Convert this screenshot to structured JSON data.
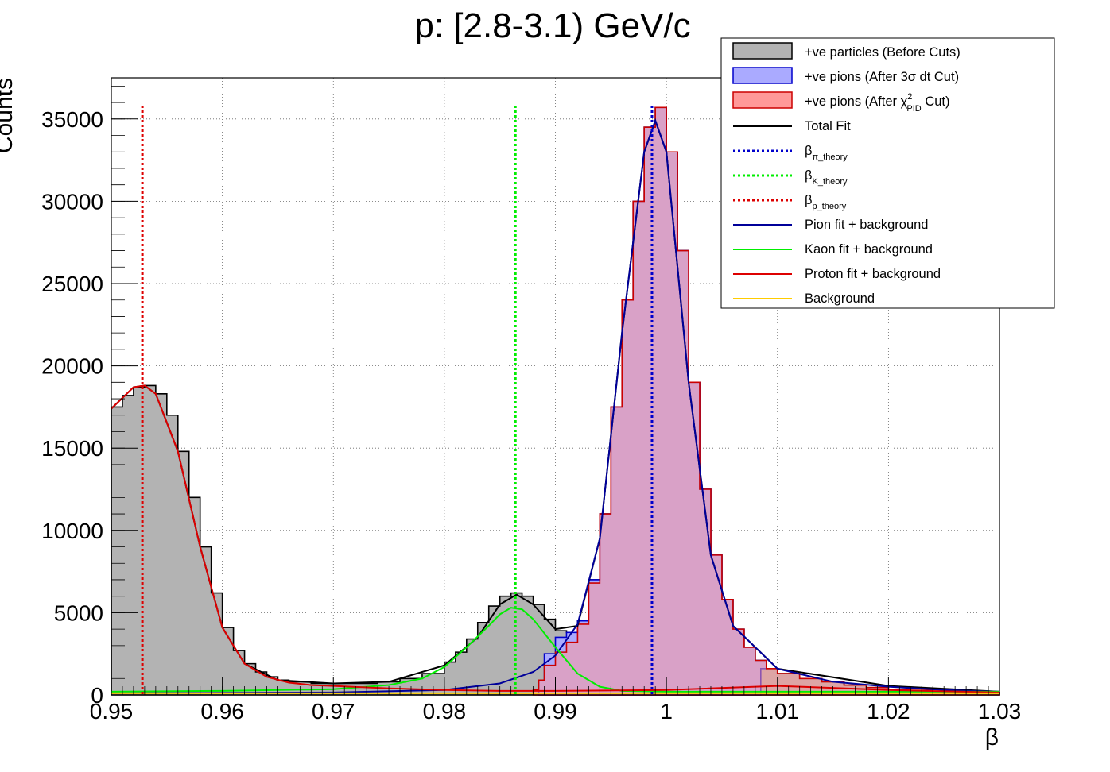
{
  "chart_data": {
    "type": "histogram",
    "title": "p: [2.8-3.1) GeV/c",
    "xlabel": "β",
    "ylabel": "Counts",
    "xlim": [
      0.95,
      1.03
    ],
    "ylim": [
      0,
      37500
    ],
    "x_ticks": [
      0.95,
      0.96,
      0.97,
      0.98,
      0.99,
      1.0,
      1.01,
      1.02,
      1.03
    ],
    "x_tick_labels": [
      "0.95",
      "0.96",
      "0.97",
      "0.98",
      "0.99",
      "1",
      "1.01",
      "1.02",
      "1.03"
    ],
    "y_ticks": [
      0,
      5000,
      10000,
      15000,
      20000,
      25000,
      30000,
      35000
    ],
    "y_tick_labels": [
      "0",
      "5000",
      "10000",
      "15000",
      "20000",
      "25000",
      "30000",
      "35000"
    ],
    "grid": true,
    "legend_position": "top-right",
    "theory_lines": [
      {
        "name": "β_p_theory",
        "x": 0.9528,
        "color": "#dd0000"
      },
      {
        "name": "β_K_theory",
        "x": 0.9864,
        "color": "#00ee00"
      },
      {
        "name": "β_π_theory",
        "x": 0.9987,
        "color": "#0000cc"
      }
    ],
    "series": [
      {
        "name": "+ve particles (Before Cuts)",
        "kind": "hist",
        "fill": "#b3b3b3",
        "line": "#000000",
        "x": [
          0.95,
          0.951,
          0.952,
          0.953,
          0.954,
          0.955,
          0.956,
          0.957,
          0.958,
          0.959,
          0.96,
          0.961,
          0.962,
          0.963,
          0.964,
          0.965,
          0.966,
          0.968,
          0.97,
          0.972,
          0.974,
          0.976,
          0.978,
          0.98,
          0.981,
          0.982,
          0.983,
          0.984,
          0.985,
          0.986,
          0.987,
          0.988,
          0.989,
          0.99,
          0.991,
          0.992,
          0.993,
          0.994,
          0.995,
          0.996,
          0.997,
          0.998,
          0.999,
          1.0,
          1.001,
          1.002,
          1.003,
          1.004,
          1.005,
          1.006,
          1.007,
          1.008,
          1.009,
          1.01,
          1.012,
          1.014,
          1.016,
          1.018,
          1.02,
          1.022,
          1.024,
          1.026,
          1.028,
          1.03
        ],
        "y": [
          17500,
          18200,
          18700,
          18800,
          18300,
          17000,
          14800,
          12000,
          9000,
          6200,
          4100,
          2700,
          1900,
          1400,
          1100,
          900,
          800,
          700,
          700,
          700,
          800,
          1000,
          1300,
          2000,
          2600,
          3400,
          4400,
          5400,
          6000,
          6200,
          6000,
          5500,
          4600,
          3900,
          3800,
          4500,
          7000,
          11000,
          17500,
          24000,
          30000,
          34500,
          35700,
          33000,
          27000,
          19000,
          12500,
          8500,
          5800,
          4000,
          2900,
          2100,
          1600,
          1300,
          1000,
          800,
          600,
          450,
          350,
          280,
          220,
          180,
          150,
          130
        ]
      },
      {
        "name": "+ve pions (After 3σ dt Cut)",
        "kind": "hist",
        "fill": "#aaaaff",
        "line": "#0000cc",
        "x": [
          0.9885,
          0.989,
          0.99,
          0.991,
          0.992,
          0.993,
          0.994,
          0.995,
          0.996,
          0.997,
          0.998,
          0.999,
          1.0,
          1.001,
          1.002,
          1.003,
          1.004,
          1.005,
          1.006,
          1.007,
          1.008,
          1.009,
          1.0085
        ],
        "y": [
          900,
          2500,
          3500,
          3800,
          4500,
          7000,
          11000,
          17500,
          24000,
          30000,
          34500,
          35700,
          33000,
          27000,
          19000,
          12500,
          8500,
          5800,
          4000,
          2900,
          2100,
          1600,
          0
        ]
      },
      {
        "name": "+ve pions (After χ²_PID Cut)",
        "kind": "hist",
        "fill": "#ff9999",
        "line": "#cc0000",
        "x": [
          0.988,
          0.9885,
          0.989,
          0.99,
          0.991,
          0.992,
          0.993,
          0.994,
          0.995,
          0.996,
          0.997,
          0.998,
          0.999,
          1.0,
          1.001,
          1.002,
          1.003,
          1.004,
          1.005,
          1.006,
          1.007,
          1.008,
          1.009,
          1.01,
          1.012,
          1.014,
          1.016,
          1.018,
          1.02,
          1.022,
          1.024,
          1.026,
          1.028,
          1.03
        ],
        "y": [
          300,
          900,
          1800,
          2600,
          3200,
          4300,
          6800,
          11000,
          17500,
          24000,
          30000,
          34500,
          35700,
          33000,
          27000,
          19000,
          12500,
          8500,
          5800,
          4000,
          2900,
          2100,
          1600,
          1300,
          1000,
          800,
          600,
          450,
          350,
          280,
          220,
          180,
          150,
          130
        ]
      },
      {
        "name": "Total Fit",
        "kind": "line",
        "color": "#000000",
        "x": [
          0.95,
          0.952,
          0.953,
          0.954,
          0.956,
          0.958,
          0.96,
          0.962,
          0.965,
          0.97,
          0.975,
          0.98,
          0.983,
          0.985,
          0.9865,
          0.988,
          0.99,
          0.992,
          0.994,
          0.996,
          0.998,
          0.999,
          1.0,
          1.002,
          1.004,
          1.006,
          1.01,
          1.02,
          1.03
        ],
        "y": [
          17400,
          18700,
          18800,
          18300,
          14800,
          9000,
          4100,
          1900,
          900,
          700,
          800,
          1800,
          3500,
          5500,
          6100,
          5500,
          4000,
          4200,
          9500,
          22000,
          33000,
          34900,
          33000,
          19000,
          8500,
          4200,
          1600,
          550,
          200
        ]
      },
      {
        "name": "Pion fit + background",
        "kind": "line",
        "color": "#000099",
        "x": [
          0.95,
          0.97,
          0.98,
          0.985,
          0.988,
          0.99,
          0.992,
          0.994,
          0.996,
          0.998,
          0.999,
          1.0,
          1.002,
          1.004,
          1.006,
          1.01,
          1.015,
          1.02,
          1.025,
          1.03
        ],
        "y": [
          100,
          150,
          300,
          700,
          1400,
          2400,
          4300,
          9500,
          22000,
          33000,
          34900,
          33000,
          19000,
          8500,
          4200,
          1600,
          800,
          500,
          300,
          200
        ]
      },
      {
        "name": "Kaon fit + background",
        "kind": "line",
        "color": "#00ee00",
        "x": [
          0.95,
          0.96,
          0.97,
          0.975,
          0.978,
          0.98,
          0.982,
          0.984,
          0.985,
          0.986,
          0.987,
          0.988,
          0.99,
          0.992,
          0.994,
          0.996,
          1.0,
          1.01,
          1.03
        ],
        "y": [
          200,
          250,
          350,
          600,
          1000,
          1700,
          2900,
          4200,
          4900,
          5300,
          5200,
          4600,
          2900,
          1300,
          500,
          250,
          200,
          200,
          200
        ]
      },
      {
        "name": "Proton fit + background",
        "kind": "line",
        "color": "#dd0000",
        "x": [
          0.95,
          0.952,
          0.953,
          0.954,
          0.956,
          0.958,
          0.96,
          0.962,
          0.964,
          0.966,
          0.968,
          0.97,
          0.975,
          0.98,
          0.985,
          0.99,
          1.0,
          1.01,
          1.02,
          1.03
        ],
        "y": [
          17400,
          18700,
          18800,
          18300,
          14800,
          9000,
          4100,
          1900,
          1100,
          750,
          600,
          550,
          400,
          300,
          250,
          250,
          300,
          550,
          300,
          150
        ]
      },
      {
        "name": "Background",
        "kind": "line",
        "color": "#ffcc00",
        "x": [
          0.95,
          0.97,
          0.99,
          1.01,
          1.03
        ],
        "y": [
          100,
          100,
          100,
          100,
          100
        ]
      }
    ]
  },
  "legend": {
    "items": [
      {
        "type": "box",
        "fill": "#b3b3b3",
        "stroke": "#000000",
        "text": "+ve particles (Before Cuts)"
      },
      {
        "type": "box",
        "fill": "#aaaaff",
        "stroke": "#0000cc",
        "text": "+ve pions (After 3σ dt Cut)"
      },
      {
        "type": "box",
        "fill": "#ff9999",
        "stroke": "#cc0000",
        "text": "+ve pions (After χ",
        "sup": "2",
        "sub": "PID",
        "after": " Cut)"
      },
      {
        "type": "line",
        "color": "#000000",
        "dash": false,
        "text": "Total Fit"
      },
      {
        "type": "line",
        "color": "#0000cc",
        "dash": true,
        "text": "β",
        "sub": "π_theory"
      },
      {
        "type": "line",
        "color": "#00ee00",
        "dash": true,
        "text": "β",
        "sub": "K_theory"
      },
      {
        "type": "line",
        "color": "#dd0000",
        "dash": true,
        "text": "β",
        "sub": "p_theory"
      },
      {
        "type": "line",
        "color": "#000099",
        "dash": false,
        "text": "Pion fit + background"
      },
      {
        "type": "line",
        "color": "#00ee00",
        "dash": false,
        "text": "Kaon fit + background"
      },
      {
        "type": "line",
        "color": "#dd0000",
        "dash": false,
        "text": "Proton fit + background"
      },
      {
        "type": "line",
        "color": "#ffcc00",
        "dash": false,
        "text": "Background"
      }
    ]
  }
}
